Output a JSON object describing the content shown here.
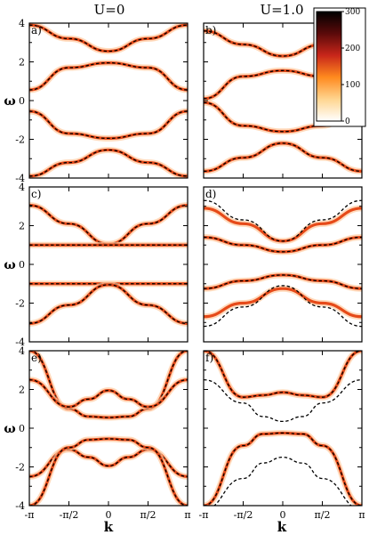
{
  "column_titles": [
    "U=0",
    "U=1.0"
  ],
  "ylabel": "ω",
  "xlabel": "k",
  "y_tick_labels": [
    "4",
    "2",
    "0",
    "-2",
    "-4"
  ],
  "x_tick_labels": [
    "-π",
    "-π/2",
    "0",
    "π/2",
    "π"
  ],
  "colorbar": {
    "tick_labels": [
      "300",
      "200",
      "100",
      "0"
    ],
    "colors": [
      "#ffffff",
      "#ffd58f",
      "#ff8a1e",
      "#c8261a",
      "#5a0a0a",
      "#000000"
    ]
  },
  "colors": {
    "band": "#e64a19",
    "band_glow": "#ffcaa0",
    "dashed": "#000000"
  },
  "chart_data": [
    {
      "panel": "a)",
      "type": "line",
      "column_title": "U=0",
      "xlim": [
        -3.1416,
        3.1416
      ],
      "ylim": [
        -4,
        4
      ],
      "series": [
        {
          "style": "band+dashed",
          "x": [
            -3.1416,
            -1.5708,
            0,
            1.5708,
            3.1416
          ],
          "y": [
            3.9,
            3.2,
            2.55,
            3.2,
            3.9
          ]
        },
        {
          "style": "band+dashed",
          "x": [
            -3.1416,
            -1.5708,
            0,
            1.5708,
            3.1416
          ],
          "y": [
            0.55,
            1.7,
            1.95,
            1.7,
            0.55
          ]
        },
        {
          "style": "band+dashed",
          "x": [
            -3.1416,
            -1.5708,
            0,
            1.5708,
            3.1416
          ],
          "y": [
            -0.55,
            -1.7,
            -1.95,
            -1.7,
            -0.55
          ]
        },
        {
          "style": "band+dashed",
          "x": [
            -3.1416,
            -1.5708,
            0,
            1.5708,
            3.1416
          ],
          "y": [
            -3.9,
            -3.2,
            -2.55,
            -3.2,
            -3.9
          ]
        }
      ]
    },
    {
      "panel": "b)",
      "type": "line",
      "column_title": "U=1.0",
      "xlim": [
        -3.1416,
        3.1416
      ],
      "ylim": [
        -4,
        4
      ],
      "series": [
        {
          "style": "band+dashed",
          "x": [
            -3.1416,
            -1.5708,
            0,
            1.5708,
            3.1416
          ],
          "y": [
            3.6,
            2.9,
            2.3,
            2.9,
            3.6
          ]
        },
        {
          "style": "band+dashed",
          "x": [
            -3.1416,
            -1.5708,
            0,
            1.5708,
            3.1416
          ],
          "y": [
            0.1,
            1.25,
            1.55,
            1.25,
            0.1
          ]
        },
        {
          "style": "band+dashed",
          "x": [
            -3.1416,
            -1.5708,
            0,
            1.5708,
            3.1416
          ],
          "y": [
            -0.1,
            -1.3,
            -1.6,
            -1.3,
            -0.1
          ]
        },
        {
          "style": "band+dashed",
          "x": [
            -3.1416,
            -1.5708,
            0,
            1.5708,
            3.1416
          ],
          "y": [
            -3.65,
            -2.95,
            -2.2,
            -2.95,
            -3.65
          ]
        }
      ]
    },
    {
      "panel": "c)",
      "type": "line",
      "column_title": "U=0",
      "xlim": [
        -3.1416,
        3.1416
      ],
      "ylim": [
        -4,
        4
      ],
      "series": [
        {
          "style": "band+dashed",
          "x": [
            -3.1416,
            -1.5708,
            0,
            1.5708,
            3.1416
          ],
          "y": [
            3.05,
            2.1,
            1.05,
            2.1,
            3.05
          ]
        },
        {
          "style": "band+dashed",
          "x": [
            -3.1416,
            0,
            3.1416
          ],
          "y": [
            1.0,
            1.0,
            1.0
          ]
        },
        {
          "style": "band+dashed",
          "x": [
            -3.1416,
            0,
            3.1416
          ],
          "y": [
            -1.0,
            -1.0,
            -1.0
          ]
        },
        {
          "style": "band+dashed",
          "x": [
            -3.1416,
            -1.5708,
            0,
            1.5708,
            3.1416
          ],
          "y": [
            -3.05,
            -2.1,
            -1.05,
            -2.1,
            -3.05
          ]
        }
      ]
    },
    {
      "panel": "d)",
      "type": "line",
      "column_title": "U=1.0",
      "xlim": [
        -3.1416,
        3.1416
      ],
      "ylim": [
        -4,
        4
      ],
      "series": [
        {
          "style": "band",
          "x": [
            -3.1416,
            -1.5708,
            0,
            1.5708,
            3.1416
          ],
          "y": [
            2.9,
            2.1,
            1.2,
            2.1,
            2.9
          ]
        },
        {
          "style": "dashed",
          "x": [
            -3.1416,
            -1.5708,
            0,
            1.5708,
            3.1416
          ],
          "y": [
            3.3,
            2.3,
            1.2,
            2.3,
            3.3
          ]
        },
        {
          "style": "band+dashed",
          "x": [
            -3.1416,
            -1.5708,
            0,
            1.5708,
            3.1416
          ],
          "y": [
            1.4,
            1.0,
            0.65,
            1.0,
            1.4
          ]
        },
        {
          "style": "band+dashed",
          "x": [
            -3.1416,
            -1.5708,
            0,
            1.5708,
            3.1416
          ],
          "y": [
            -1.25,
            -0.85,
            -0.55,
            -0.85,
            -1.25
          ]
        },
        {
          "style": "band",
          "x": [
            -3.1416,
            -1.5708,
            0,
            1.5708,
            3.1416
          ],
          "y": [
            -2.7,
            -2.0,
            -1.25,
            -2.0,
            -2.7
          ]
        },
        {
          "style": "dashed",
          "x": [
            -3.1416,
            -1.5708,
            0,
            1.5708,
            3.1416
          ],
          "y": [
            -3.2,
            -2.2,
            -1.1,
            -2.2,
            -3.2
          ]
        }
      ]
    },
    {
      "panel": "e)",
      "type": "line",
      "column_title": "U=0",
      "xlim": [
        -3.1416,
        3.1416
      ],
      "ylim": [
        -4,
        4
      ],
      "series": [
        {
          "style": "band+dashed",
          "x": [
            -3.1416,
            -1.5708,
            -0.7854,
            0,
            0.7854,
            1.5708,
            3.1416
          ],
          "y": [
            4.0,
            1.0,
            0.6,
            0.55,
            0.6,
            1.0,
            4.0
          ]
        },
        {
          "style": "band+dashed",
          "x": [
            -3.1416,
            -1.5708,
            -0.7854,
            0,
            0.7854,
            1.5708,
            3.1416
          ],
          "y": [
            2.5,
            1.1,
            1.5,
            1.95,
            1.5,
            1.1,
            2.5
          ]
        },
        {
          "style": "band+dashed",
          "x": [
            -3.1416,
            -1.5708,
            -0.7854,
            0,
            0.7854,
            1.5708,
            3.1416
          ],
          "y": [
            -2.5,
            -1.1,
            -1.5,
            -1.95,
            -1.5,
            -1.1,
            -2.5
          ]
        },
        {
          "style": "band+dashed",
          "x": [
            -3.1416,
            -1.5708,
            -0.7854,
            0,
            0.7854,
            1.5708,
            3.1416
          ],
          "y": [
            -4.0,
            -1.0,
            -0.6,
            -0.55,
            -0.6,
            -1.0,
            -4.0
          ]
        }
      ]
    },
    {
      "panel": "f)",
      "type": "line",
      "column_title": "U=1.0",
      "xlim": [
        -3.1416,
        3.1416
      ],
      "ylim": [
        -4,
        4
      ],
      "series": [
        {
          "style": "band+dashed",
          "x": [
            -3.1416,
            -1.5708,
            -0.7854,
            0,
            0.7854,
            1.5708,
            3.1416
          ],
          "y": [
            4.0,
            1.6,
            1.7,
            1.85,
            1.7,
            1.6,
            4.0
          ]
        },
        {
          "style": "dashed",
          "x": [
            -3.1416,
            -1.5708,
            -0.7854,
            0,
            0.7854,
            1.5708,
            3.1416
          ],
          "y": [
            2.5,
            1.3,
            0.6,
            0.35,
            0.6,
            1.3,
            2.5
          ]
        },
        {
          "style": "band+dashed",
          "x": [
            -3.1416,
            -1.5708,
            -0.7854,
            0,
            0.7854,
            1.5708,
            3.1416
          ],
          "y": [
            -4.0,
            -0.9,
            -0.3,
            -0.25,
            -0.3,
            -0.9,
            -4.0
          ]
        },
        {
          "style": "dashed",
          "x": [
            -3.1416,
            -1.5708,
            -0.7854,
            0,
            0.7854,
            1.5708,
            3.1416
          ],
          "y": [
            -4.2,
            -2.6,
            -1.8,
            -1.5,
            -1.8,
            -2.6,
            -4.2
          ]
        }
      ]
    }
  ]
}
